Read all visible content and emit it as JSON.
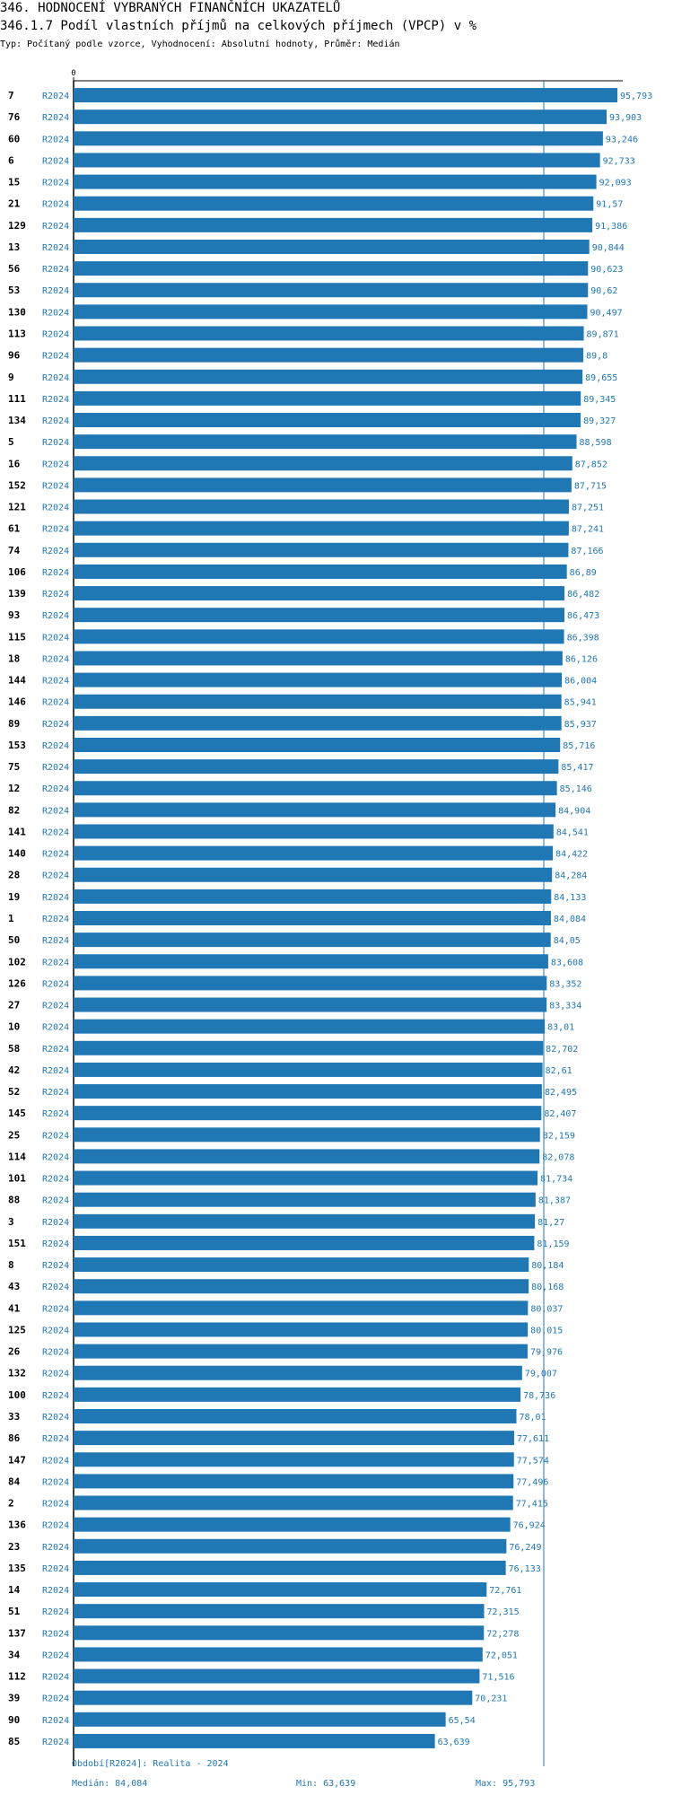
{
  "header": {
    "title": "346. HODNOCENÍ VYBRANÝCH FINANČNÍCH UKAZATELŮ",
    "subtitle": "346.1.7 Podíl vlastních příjmů na celkových příjmech (VPCP) v %",
    "type_line": "Typ: Počítaný podle vzorce, Vyhodnocení: Absolutní hodnoty, Průměr: Medián"
  },
  "colors": {
    "bar": "#1f77b4",
    "value_text": "#1f77b4",
    "period_text": "#1f77b4",
    "axis": "#000000",
    "median_line": "#1f77b4"
  },
  "chart_data": {
    "type": "bar",
    "orientation": "horizontal",
    "axis_tick_label": "0",
    "xlim": [
      0,
      95.793
    ],
    "median": 84.084,
    "rows": [
      {
        "id": "7",
        "period": "R2024",
        "value": 95.793,
        "label": "95,793"
      },
      {
        "id": "76",
        "period": "R2024",
        "value": 93.903,
        "label": "93,903"
      },
      {
        "id": "60",
        "period": "R2024",
        "value": 93.246,
        "label": "93,246"
      },
      {
        "id": "6",
        "period": "R2024",
        "value": 92.733,
        "label": "92,733"
      },
      {
        "id": "15",
        "period": "R2024",
        "value": 92.093,
        "label": "92,093"
      },
      {
        "id": "21",
        "period": "R2024",
        "value": 91.57,
        "label": "91,57"
      },
      {
        "id": "129",
        "period": "R2024",
        "value": 91.386,
        "label": "91,386"
      },
      {
        "id": "13",
        "period": "R2024",
        "value": 90.844,
        "label": "90,844"
      },
      {
        "id": "56",
        "period": "R2024",
        "value": 90.623,
        "label": "90,623"
      },
      {
        "id": "53",
        "period": "R2024",
        "value": 90.62,
        "label": "90,62"
      },
      {
        "id": "130",
        "period": "R2024",
        "value": 90.497,
        "label": "90,497"
      },
      {
        "id": "113",
        "period": "R2024",
        "value": 89.871,
        "label": "89,871"
      },
      {
        "id": "96",
        "period": "R2024",
        "value": 89.8,
        "label": "89,8"
      },
      {
        "id": "9",
        "period": "R2024",
        "value": 89.655,
        "label": "89,655"
      },
      {
        "id": "111",
        "period": "R2024",
        "value": 89.345,
        "label": "89,345"
      },
      {
        "id": "134",
        "period": "R2024",
        "value": 89.327,
        "label": "89,327"
      },
      {
        "id": "5",
        "period": "R2024",
        "value": 88.598,
        "label": "88,598"
      },
      {
        "id": "16",
        "period": "R2024",
        "value": 87.852,
        "label": "87,852"
      },
      {
        "id": "152",
        "period": "R2024",
        "value": 87.715,
        "label": "87,715"
      },
      {
        "id": "121",
        "period": "R2024",
        "value": 87.251,
        "label": "87,251"
      },
      {
        "id": "61",
        "period": "R2024",
        "value": 87.241,
        "label": "87,241"
      },
      {
        "id": "74",
        "period": "R2024",
        "value": 87.166,
        "label": "87,166"
      },
      {
        "id": "106",
        "period": "R2024",
        "value": 86.89,
        "label": "86,89"
      },
      {
        "id": "139",
        "period": "R2024",
        "value": 86.482,
        "label": "86,482"
      },
      {
        "id": "93",
        "period": "R2024",
        "value": 86.473,
        "label": "86,473"
      },
      {
        "id": "115",
        "period": "R2024",
        "value": 86.398,
        "label": "86,398"
      },
      {
        "id": "18",
        "period": "R2024",
        "value": 86.126,
        "label": "86,126"
      },
      {
        "id": "144",
        "period": "R2024",
        "value": 86.004,
        "label": "86,004"
      },
      {
        "id": "146",
        "period": "R2024",
        "value": 85.941,
        "label": "85,941"
      },
      {
        "id": "89",
        "period": "R2024",
        "value": 85.937,
        "label": "85,937"
      },
      {
        "id": "153",
        "period": "R2024",
        "value": 85.716,
        "label": "85,716"
      },
      {
        "id": "75",
        "period": "R2024",
        "value": 85.417,
        "label": "85,417"
      },
      {
        "id": "12",
        "period": "R2024",
        "value": 85.146,
        "label": "85,146"
      },
      {
        "id": "82",
        "period": "R2024",
        "value": 84.904,
        "label": "84,904"
      },
      {
        "id": "141",
        "period": "R2024",
        "value": 84.541,
        "label": "84,541"
      },
      {
        "id": "140",
        "period": "R2024",
        "value": 84.422,
        "label": "84,422"
      },
      {
        "id": "28",
        "period": "R2024",
        "value": 84.284,
        "label": "84,284"
      },
      {
        "id": "19",
        "period": "R2024",
        "value": 84.133,
        "label": "84,133"
      },
      {
        "id": "1",
        "period": "R2024",
        "value": 84.084,
        "label": "84,084"
      },
      {
        "id": "50",
        "period": "R2024",
        "value": 84.05,
        "label": "84,05"
      },
      {
        "id": "102",
        "period": "R2024",
        "value": 83.608,
        "label": "83,608"
      },
      {
        "id": "126",
        "period": "R2024",
        "value": 83.352,
        "label": "83,352"
      },
      {
        "id": "27",
        "period": "R2024",
        "value": 83.334,
        "label": "83,334"
      },
      {
        "id": "10",
        "period": "R2024",
        "value": 83.01,
        "label": "83,01"
      },
      {
        "id": "58",
        "period": "R2024",
        "value": 82.702,
        "label": "82,702"
      },
      {
        "id": "42",
        "period": "R2024",
        "value": 82.61,
        "label": "82,61"
      },
      {
        "id": "52",
        "period": "R2024",
        "value": 82.495,
        "label": "82,495"
      },
      {
        "id": "145",
        "period": "R2024",
        "value": 82.407,
        "label": "82,407"
      },
      {
        "id": "25",
        "period": "R2024",
        "value": 82.159,
        "label": "82,159"
      },
      {
        "id": "114",
        "period": "R2024",
        "value": 82.078,
        "label": "82,078"
      },
      {
        "id": "101",
        "period": "R2024",
        "value": 81.734,
        "label": "81,734"
      },
      {
        "id": "88",
        "period": "R2024",
        "value": 81.387,
        "label": "81,387"
      },
      {
        "id": "3",
        "period": "R2024",
        "value": 81.27,
        "label": "81,27"
      },
      {
        "id": "151",
        "period": "R2024",
        "value": 81.159,
        "label": "81,159"
      },
      {
        "id": "8",
        "period": "R2024",
        "value": 80.184,
        "label": "80,184"
      },
      {
        "id": "43",
        "period": "R2024",
        "value": 80.168,
        "label": "80,168"
      },
      {
        "id": "41",
        "period": "R2024",
        "value": 80.037,
        "label": "80,037"
      },
      {
        "id": "125",
        "period": "R2024",
        "value": 80.015,
        "label": "80,015"
      },
      {
        "id": "26",
        "period": "R2024",
        "value": 79.976,
        "label": "79,976"
      },
      {
        "id": "132",
        "period": "R2024",
        "value": 79.007,
        "label": "79,007"
      },
      {
        "id": "100",
        "period": "R2024",
        "value": 78.736,
        "label": "78,736"
      },
      {
        "id": "33",
        "period": "R2024",
        "value": 78.01,
        "label": "78,01"
      },
      {
        "id": "86",
        "period": "R2024",
        "value": 77.611,
        "label": "77,611"
      },
      {
        "id": "147",
        "period": "R2024",
        "value": 77.574,
        "label": "77,574"
      },
      {
        "id": "84",
        "period": "R2024",
        "value": 77.496,
        "label": "77,496"
      },
      {
        "id": "2",
        "period": "R2024",
        "value": 77.415,
        "label": "77,415"
      },
      {
        "id": "136",
        "period": "R2024",
        "value": 76.924,
        "label": "76,924"
      },
      {
        "id": "23",
        "period": "R2024",
        "value": 76.249,
        "label": "76,249"
      },
      {
        "id": "135",
        "period": "R2024",
        "value": 76.133,
        "label": "76,133"
      },
      {
        "id": "14",
        "period": "R2024",
        "value": 72.761,
        "label": "72,761"
      },
      {
        "id": "51",
        "period": "R2024",
        "value": 72.315,
        "label": "72,315"
      },
      {
        "id": "137",
        "period": "R2024",
        "value": 72.278,
        "label": "72,278"
      },
      {
        "id": "34",
        "period": "R2024",
        "value": 72.051,
        "label": "72,051"
      },
      {
        "id": "112",
        "period": "R2024",
        "value": 71.516,
        "label": "71,516"
      },
      {
        "id": "39",
        "period": "R2024",
        "value": 70.231,
        "label": "70,231"
      },
      {
        "id": "90",
        "period": "R2024",
        "value": 65.54,
        "label": "65,54"
      },
      {
        "id": "85",
        "period": "R2024",
        "value": 63.639,
        "label": "63,639"
      }
    ]
  },
  "footer": {
    "period_legend": "Období[R2024]: Realita - 2024",
    "median_text": "Medián: 84,084",
    "min_text": "Min: 63,639",
    "max_text": "Max: 95,793"
  }
}
